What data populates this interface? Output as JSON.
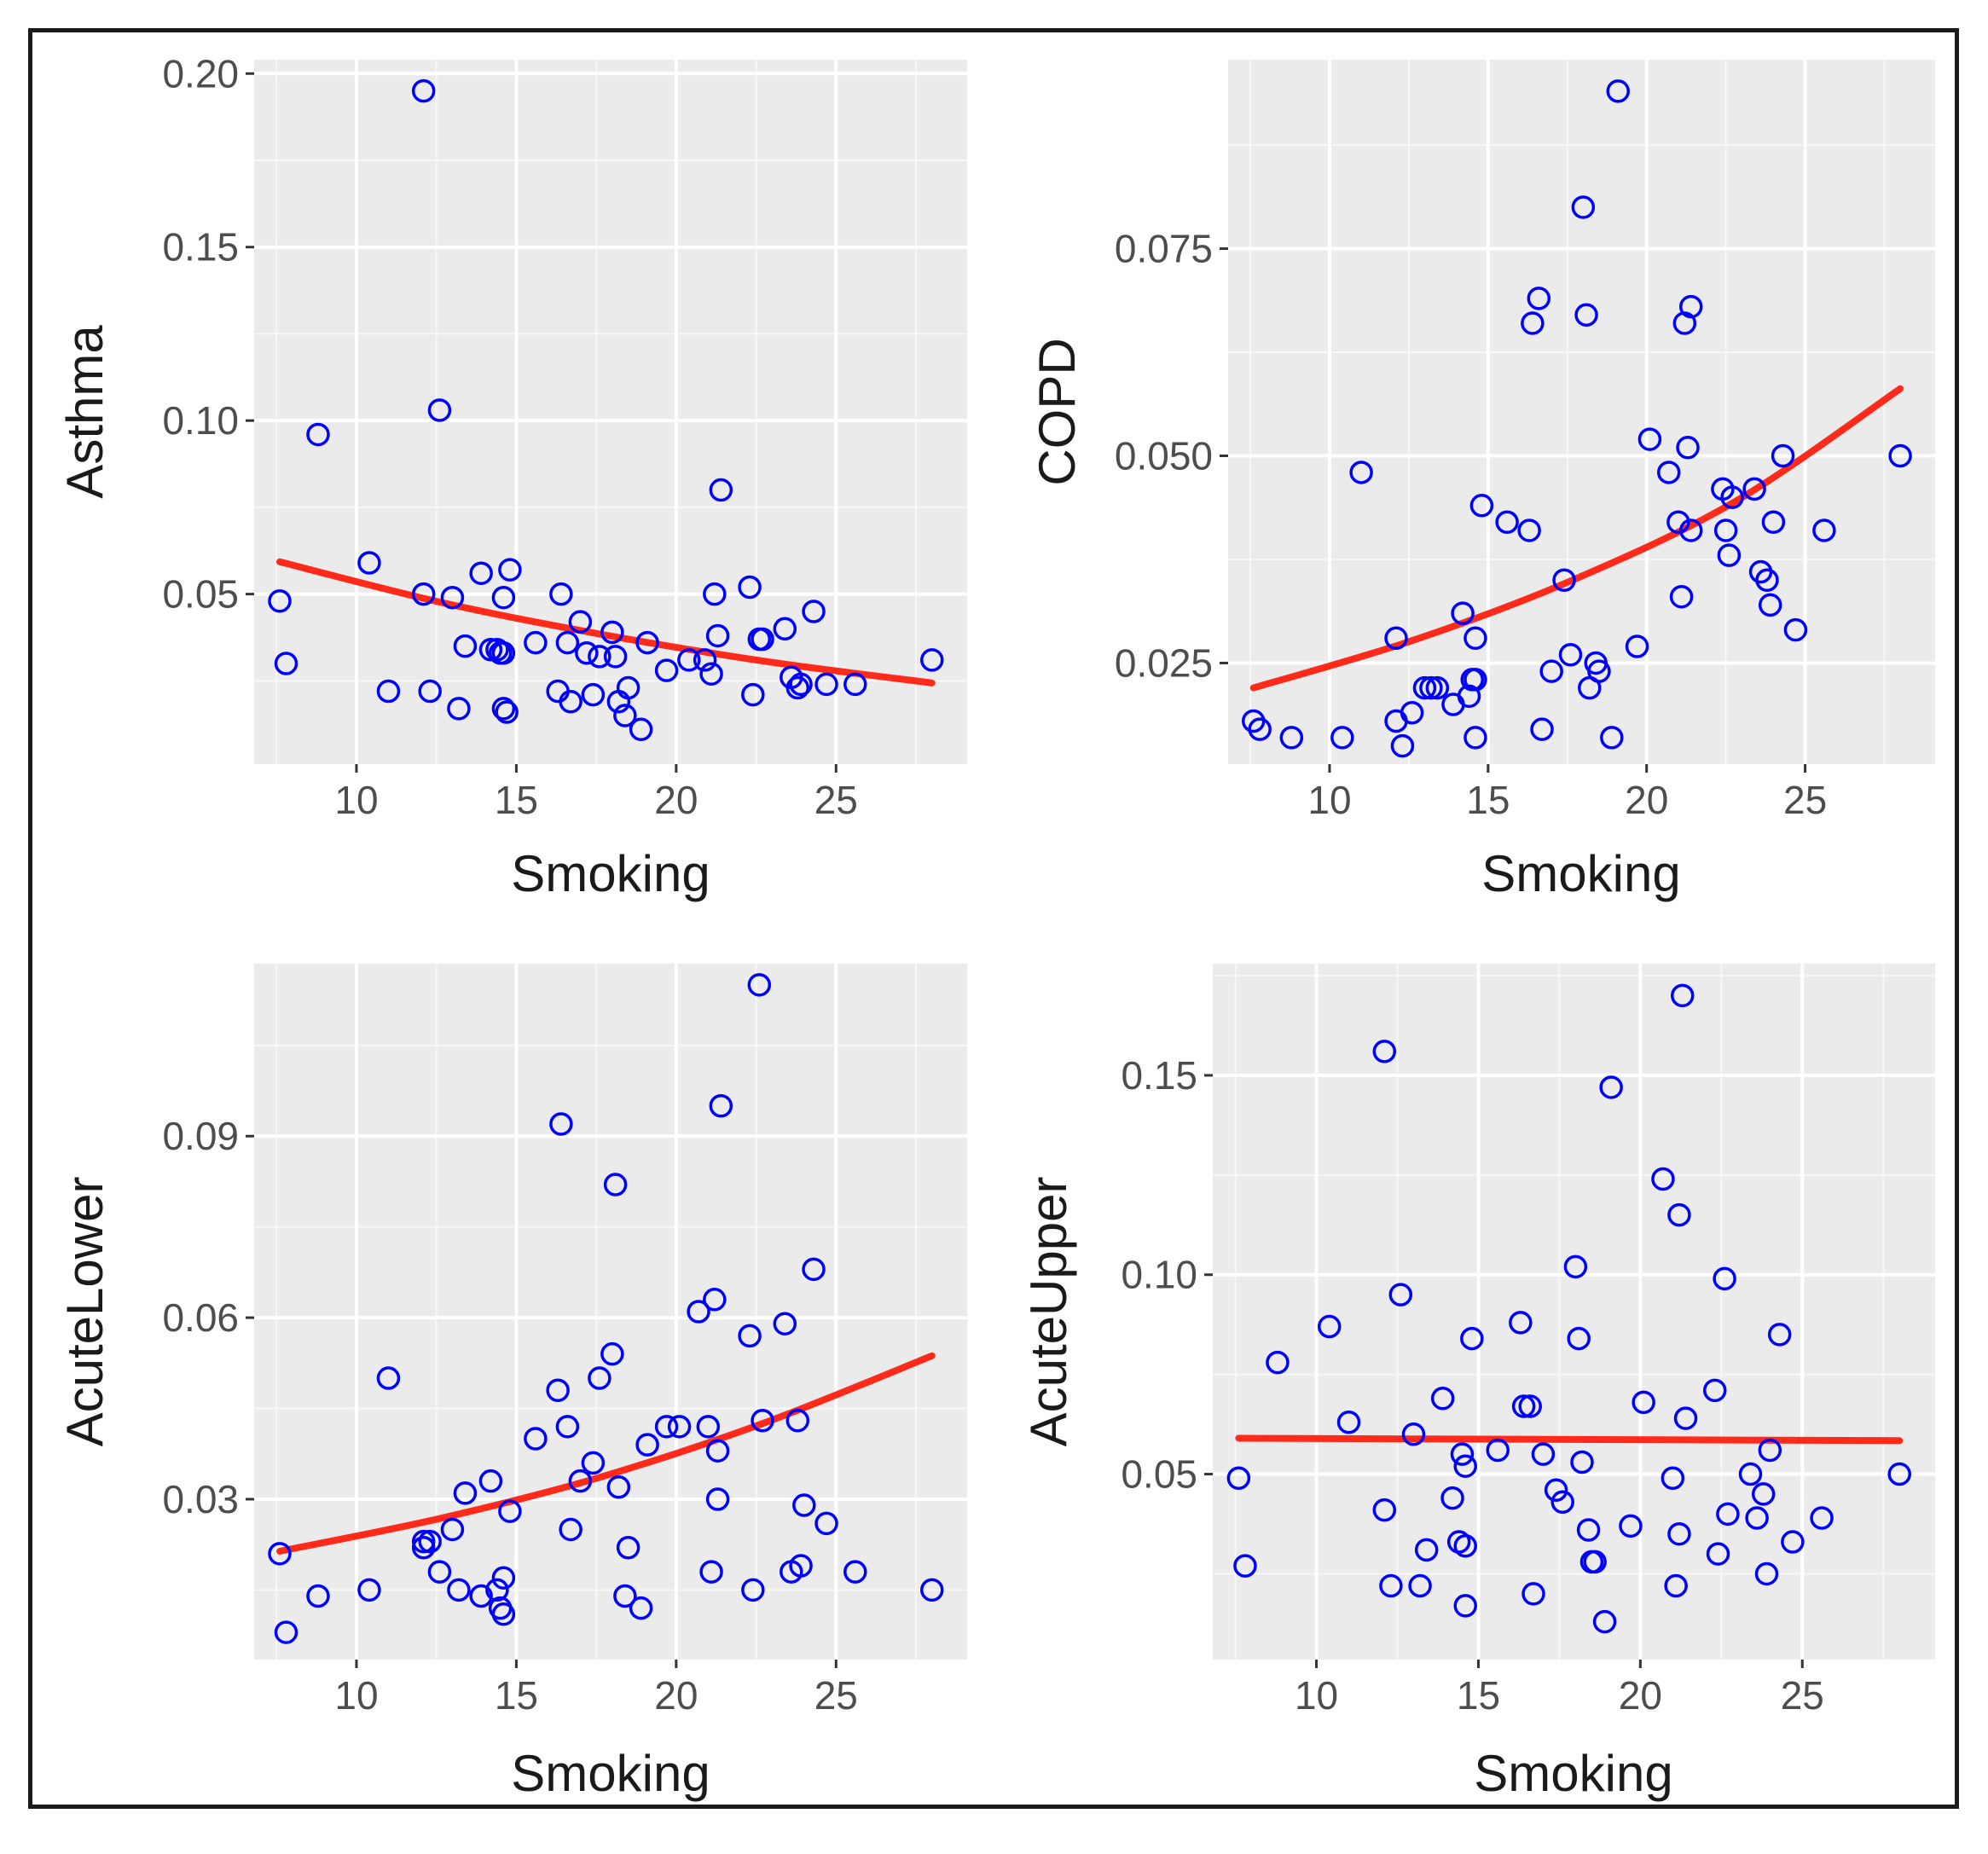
{
  "chart_data": [
    {
      "type": "scatter",
      "xlabel": "Smoking",
      "ylabel": "Asthma",
      "xlim": [
        6.8,
        29.1
      ],
      "ylim": [
        0.001,
        0.204
      ],
      "xticks": [
        10,
        15,
        20,
        25
      ],
      "yticks": [
        0.05,
        0.1,
        0.15,
        0.2
      ],
      "ytick_labels": [
        "0.05",
        "0.10",
        "0.15",
        "0.20"
      ],
      "grid": true,
      "point_color": "#0000ff",
      "fit_color": "#ff2a1a",
      "points": [
        [
          7.6,
          0.048
        ],
        [
          7.8,
          0.03
        ],
        [
          8.8,
          0.096
        ],
        [
          10.4,
          0.059
        ],
        [
          11.0,
          0.022
        ],
        [
          12.1,
          0.195
        ],
        [
          12.1,
          0.05
        ],
        [
          12.3,
          0.022
        ],
        [
          12.6,
          0.103
        ],
        [
          13.0,
          0.049
        ],
        [
          13.2,
          0.017
        ],
        [
          13.4,
          0.035
        ],
        [
          13.9,
          0.056
        ],
        [
          14.2,
          0.034
        ],
        [
          14.4,
          0.034
        ],
        [
          14.5,
          0.033
        ],
        [
          14.6,
          0.033
        ],
        [
          14.6,
          0.049
        ],
        [
          14.6,
          0.017
        ],
        [
          14.7,
          0.016
        ],
        [
          14.8,
          0.057
        ],
        [
          15.6,
          0.036
        ],
        [
          16.3,
          0.022
        ],
        [
          16.4,
          0.05
        ],
        [
          16.6,
          0.036
        ],
        [
          16.7,
          0.019
        ],
        [
          17.0,
          0.042
        ],
        [
          17.2,
          0.033
        ],
        [
          17.4,
          0.021
        ],
        [
          17.6,
          0.032
        ],
        [
          18.0,
          0.039
        ],
        [
          18.1,
          0.032
        ],
        [
          18.2,
          0.019
        ],
        [
          18.4,
          0.015
        ],
        [
          18.5,
          0.023
        ],
        [
          18.9,
          0.011
        ],
        [
          19.1,
          0.036
        ],
        [
          19.7,
          0.028
        ],
        [
          20.4,
          0.031
        ],
        [
          20.9,
          0.031
        ],
        [
          21.1,
          0.027
        ],
        [
          21.2,
          0.05
        ],
        [
          21.3,
          0.038
        ],
        [
          21.4,
          0.08
        ],
        [
          22.3,
          0.052
        ],
        [
          22.4,
          0.021
        ],
        [
          22.6,
          0.037
        ],
        [
          22.7,
          0.037
        ],
        [
          23.4,
          0.04
        ],
        [
          23.6,
          0.026
        ],
        [
          23.8,
          0.023
        ],
        [
          23.9,
          0.024
        ],
        [
          24.3,
          0.045
        ],
        [
          24.7,
          0.024
        ],
        [
          25.6,
          0.024
        ],
        [
          28.0,
          0.031
        ]
      ],
      "fit_line": [
        [
          7.6,
          0.0593
        ],
        [
          12.6,
          0.0477
        ],
        [
          17.6,
          0.0385
        ],
        [
          22.8,
          0.0306
        ],
        [
          28.0,
          0.0244
        ]
      ]
    },
    {
      "type": "scatter",
      "xlabel": "Smoking",
      "ylabel": "COPD",
      "xlim": [
        6.8,
        29.1
      ],
      "ylim": [
        0.0128,
        0.0978
      ],
      "xticks": [
        10,
        15,
        20,
        25
      ],
      "yticks": [
        0.025,
        0.05,
        0.075
      ],
      "ytick_labels": [
        "0.025",
        "0.050",
        "0.075"
      ],
      "grid": true,
      "point_color": "#0000ff",
      "fit_color": "#ff2a1a",
      "points": [
        [
          7.6,
          0.018
        ],
        [
          7.8,
          0.017
        ],
        [
          8.8,
          0.016
        ],
        [
          10.4,
          0.016
        ],
        [
          11.0,
          0.048
        ],
        [
          12.1,
          0.028
        ],
        [
          12.1,
          0.018
        ],
        [
          12.3,
          0.015
        ],
        [
          12.6,
          0.019
        ],
        [
          13.0,
          0.022
        ],
        [
          13.2,
          0.022
        ],
        [
          13.4,
          0.022
        ],
        [
          13.9,
          0.02
        ],
        [
          14.2,
          0.031
        ],
        [
          14.4,
          0.021
        ],
        [
          14.5,
          0.023
        ],
        [
          14.6,
          0.023
        ],
        [
          14.6,
          0.028
        ],
        [
          14.6,
          0.016
        ],
        [
          14.8,
          0.044
        ],
        [
          15.6,
          0.042
        ],
        [
          16.3,
          0.041
        ],
        [
          16.4,
          0.066
        ],
        [
          16.6,
          0.069
        ],
        [
          16.7,
          0.017
        ],
        [
          17.0,
          0.024
        ],
        [
          17.4,
          0.035
        ],
        [
          17.6,
          0.026
        ],
        [
          18.0,
          0.08
        ],
        [
          18.1,
          0.067
        ],
        [
          18.2,
          0.022
        ],
        [
          18.4,
          0.025
        ],
        [
          18.5,
          0.024
        ],
        [
          18.9,
          0.016
        ],
        [
          19.1,
          0.094
        ],
        [
          19.7,
          0.027
        ],
        [
          20.1,
          0.052
        ],
        [
          20.7,
          0.048
        ],
        [
          21.0,
          0.042
        ],
        [
          21.1,
          0.033
        ],
        [
          21.2,
          0.066
        ],
        [
          21.3,
          0.051
        ],
        [
          21.4,
          0.041
        ],
        [
          21.4,
          0.068
        ],
        [
          22.4,
          0.046
        ],
        [
          22.5,
          0.041
        ],
        [
          22.6,
          0.038
        ],
        [
          22.7,
          0.045
        ],
        [
          23.4,
          0.046
        ],
        [
          23.6,
          0.036
        ],
        [
          23.8,
          0.035
        ],
        [
          23.9,
          0.032
        ],
        [
          24.0,
          0.042
        ],
        [
          24.3,
          0.05
        ],
        [
          24.7,
          0.029
        ],
        [
          25.6,
          0.041
        ],
        [
          28.0,
          0.05
        ]
      ],
      "fit_line": [
        [
          7.6,
          0.022
        ],
        [
          12.6,
          0.0277
        ],
        [
          17.6,
          0.0349
        ],
        [
          22.8,
          0.0445
        ],
        [
          28.0,
          0.0581
        ]
      ]
    },
    {
      "type": "scatter",
      "xlabel": "Smoking",
      "ylabel": "AcuteLower",
      "xlim": [
        6.8,
        29.1
      ],
      "ylim": [
        0.0035,
        0.1185
      ],
      "xticks": [
        10,
        15,
        20,
        25
      ],
      "yticks": [
        0.03,
        0.06,
        0.09
      ],
      "ytick_labels": [
        "0.03",
        "0.06",
        "0.09"
      ],
      "grid": true,
      "point_color": "#0000ff",
      "fit_color": "#ff2a1a",
      "points": [
        [
          7.6,
          0.021
        ],
        [
          7.8,
          0.008
        ],
        [
          8.8,
          0.014
        ],
        [
          10.4,
          0.015
        ],
        [
          11.0,
          0.05
        ],
        [
          12.1,
          0.023
        ],
        [
          12.1,
          0.022
        ],
        [
          12.3,
          0.023
        ],
        [
          12.6,
          0.018
        ],
        [
          13.0,
          0.025
        ],
        [
          13.2,
          0.015
        ],
        [
          13.4,
          0.031
        ],
        [
          13.9,
          0.014
        ],
        [
          14.2,
          0.033
        ],
        [
          14.4,
          0.015
        ],
        [
          14.5,
          0.012
        ],
        [
          14.6,
          0.017
        ],
        [
          14.6,
          0.011
        ],
        [
          14.8,
          0.028
        ],
        [
          15.6,
          0.04
        ],
        [
          16.3,
          0.048
        ],
        [
          16.4,
          0.092
        ],
        [
          16.6,
          0.042
        ],
        [
          16.7,
          0.025
        ],
        [
          17.0,
          0.033
        ],
        [
          17.4,
          0.036
        ],
        [
          17.6,
          0.05
        ],
        [
          18.0,
          0.054
        ],
        [
          18.1,
          0.082
        ],
        [
          18.2,
          0.032
        ],
        [
          18.4,
          0.014
        ],
        [
          18.5,
          0.022
        ],
        [
          18.9,
          0.012
        ],
        [
          19.1,
          0.039
        ],
        [
          19.7,
          0.042
        ],
        [
          20.1,
          0.042
        ],
        [
          20.7,
          0.061
        ],
        [
          21.0,
          0.042
        ],
        [
          21.1,
          0.018
        ],
        [
          21.2,
          0.063
        ],
        [
          21.3,
          0.038
        ],
        [
          21.3,
          0.03
        ],
        [
          21.4,
          0.095
        ],
        [
          22.3,
          0.057
        ],
        [
          22.4,
          0.015
        ],
        [
          22.6,
          0.115
        ],
        [
          22.7,
          0.043
        ],
        [
          23.4,
          0.059
        ],
        [
          23.6,
          0.018
        ],
        [
          23.8,
          0.043
        ],
        [
          23.9,
          0.019
        ],
        [
          24.0,
          0.029
        ],
        [
          24.3,
          0.068
        ],
        [
          24.7,
          0.026
        ],
        [
          25.6,
          0.018
        ],
        [
          28.0,
          0.015
        ]
      ],
      "fit_line": [
        [
          7.6,
          0.0214
        ],
        [
          12.6,
          0.0268
        ],
        [
          17.6,
          0.0336
        ],
        [
          22.8,
          0.0427
        ],
        [
          28.0,
          0.0537
        ]
      ]
    },
    {
      "type": "scatter",
      "xlabel": "Smoking",
      "ylabel": "AcuteUpper",
      "xlim": [
        6.8,
        29.1
      ],
      "ylim": [
        0.0035,
        0.178
      ],
      "xticks": [
        10,
        15,
        20,
        25
      ],
      "yticks": [
        0.05,
        0.1,
        0.15
      ],
      "ytick_labels": [
        "0.05",
        "0.10",
        "0.15"
      ],
      "grid": true,
      "point_color": "#0000ff",
      "fit_color": "#ff2a1a",
      "points": [
        [
          7.6,
          0.049
        ],
        [
          7.8,
          0.027
        ],
        [
          8.8,
          0.078
        ],
        [
          10.4,
          0.087
        ],
        [
          11.0,
          0.063
        ],
        [
          12.1,
          0.156
        ],
        [
          12.1,
          0.041
        ],
        [
          12.3,
          0.022
        ],
        [
          12.6,
          0.095
        ],
        [
          13.0,
          0.06
        ],
        [
          13.2,
          0.022
        ],
        [
          13.4,
          0.031
        ],
        [
          13.9,
          0.069
        ],
        [
          14.2,
          0.044
        ],
        [
          14.4,
          0.033
        ],
        [
          14.5,
          0.055
        ],
        [
          14.6,
          0.032
        ],
        [
          14.6,
          0.052
        ],
        [
          14.6,
          0.017
        ],
        [
          14.8,
          0.084
        ],
        [
          15.6,
          0.056
        ],
        [
          16.3,
          0.088
        ],
        [
          16.4,
          0.067
        ],
        [
          16.6,
          0.067
        ],
        [
          16.7,
          0.02
        ],
        [
          17.0,
          0.055
        ],
        [
          17.4,
          0.046
        ],
        [
          17.6,
          0.043
        ],
        [
          18.0,
          0.102
        ],
        [
          18.1,
          0.084
        ],
        [
          18.2,
          0.053
        ],
        [
          18.4,
          0.036
        ],
        [
          18.5,
          0.028
        ],
        [
          18.6,
          0.028
        ],
        [
          18.9,
          0.013
        ],
        [
          19.1,
          0.147
        ],
        [
          19.7,
          0.037
        ],
        [
          20.1,
          0.068
        ],
        [
          20.7,
          0.124
        ],
        [
          21.0,
          0.049
        ],
        [
          21.1,
          0.022
        ],
        [
          21.2,
          0.115
        ],
        [
          21.2,
          0.035
        ],
        [
          21.3,
          0.17
        ],
        [
          21.4,
          0.064
        ],
        [
          22.3,
          0.071
        ],
        [
          22.4,
          0.03
        ],
        [
          22.6,
          0.099
        ],
        [
          22.7,
          0.04
        ],
        [
          23.4,
          0.05
        ],
        [
          23.6,
          0.039
        ],
        [
          23.8,
          0.045
        ],
        [
          23.9,
          0.025
        ],
        [
          24.0,
          0.056
        ],
        [
          24.3,
          0.085
        ],
        [
          24.7,
          0.033
        ],
        [
          25.6,
          0.039
        ],
        [
          28.0,
          0.05
        ]
      ],
      "fit_line": [
        [
          7.6,
          0.059
        ],
        [
          17.8,
          0.0587
        ],
        [
          28.0,
          0.0584
        ]
      ]
    }
  ]
}
